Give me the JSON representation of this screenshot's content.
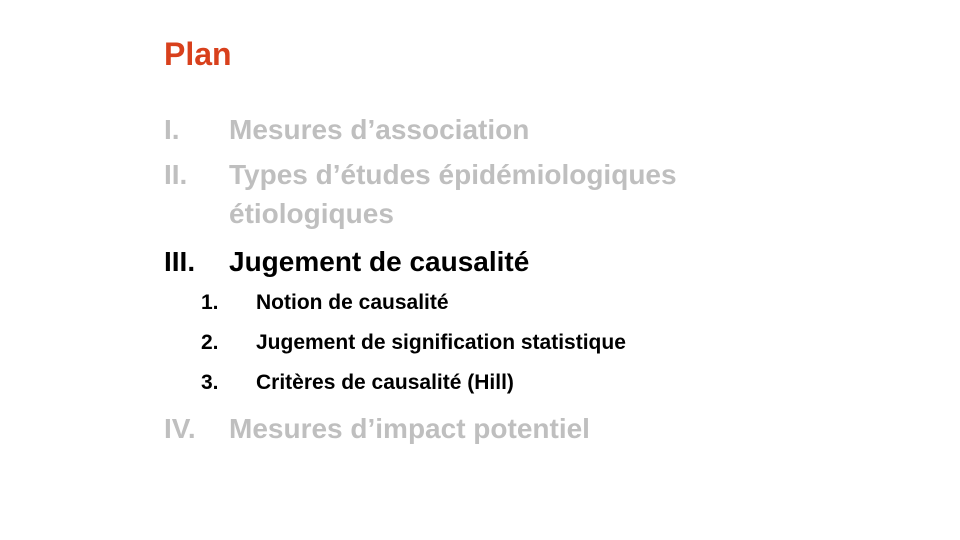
{
  "slide": {
    "title": "Plan",
    "colors": {
      "title": "#d8401c",
      "inactive": "#bfbfbf",
      "active": "#000000"
    },
    "sections": [
      {
        "num": "I.",
        "lines": [
          "Mesures d’association"
        ]
      },
      {
        "num": "II.",
        "lines": [
          "Types d’études épidémiologiques",
          "étiologiques"
        ]
      },
      {
        "num": "III.",
        "lines": [
          "Jugement de causalité"
        ],
        "subitems": [
          {
            "num": "1.",
            "label": "Notion de causalité"
          },
          {
            "num": "2.",
            "label": "Jugement de signification statistique"
          },
          {
            "num": "3.",
            "label": "Critères de causalité (Hill)"
          }
        ]
      },
      {
        "num": "IV.",
        "lines": [
          "Mesures d’impact potentiel"
        ]
      }
    ]
  }
}
